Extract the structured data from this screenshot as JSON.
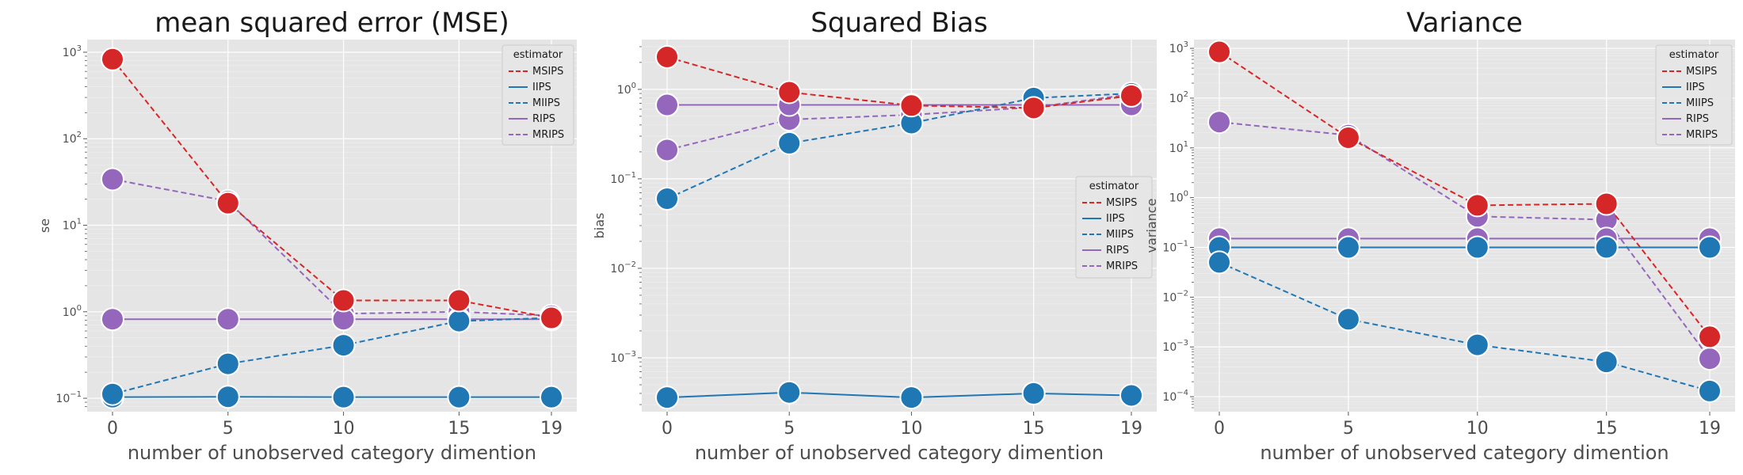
{
  "figure": {
    "legend_title": "estimator",
    "colors": {
      "MSIPS": "#d62728",
      "IIPS": "#1f77b4",
      "MIIPS": "#1f77b4",
      "RIPS": "#9467bd",
      "MRIPS": "#9467bd",
      "panel_bg": "#e5e5e5",
      "grid": "#ffffff"
    }
  },
  "chart_data": [
    {
      "type": "line",
      "title": "mean squared error (MSE)",
      "xlabel": "number of unobserved category dimention",
      "ylabel": "se",
      "yscale": "log",
      "ylim": [
        0.07,
        1400
      ],
      "x": [
        0,
        5,
        10,
        15,
        19
      ],
      "x_ticks": [
        "0",
        "5",
        "10",
        "15",
        "19"
      ],
      "y_ticks": [
        {
          "value": 0.1,
          "base": "10",
          "exp": "−1"
        },
        {
          "value": 1,
          "base": "10",
          "exp": "0"
        },
        {
          "value": 10,
          "base": "10",
          "exp": "1"
        },
        {
          "value": 100,
          "base": "10",
          "exp": "2"
        },
        {
          "value": 1000,
          "base": "10",
          "exp": "3"
        }
      ],
      "grid": true,
      "legend": "top-right",
      "series": [
        {
          "name": "MSIPS",
          "style": "dashed",
          "color": "#d62728",
          "values": [
            830,
            18,
            1.35,
            1.35,
            0.85
          ]
        },
        {
          "name": "IIPS",
          "style": "solid",
          "color": "#1f77b4",
          "values": [
            0.103,
            0.104,
            0.103,
            0.103,
            0.103
          ]
        },
        {
          "name": "MIIPS",
          "style": "dashed",
          "color": "#1f77b4",
          "values": [
            0.112,
            0.25,
            0.41,
            0.78,
            0.85
          ]
        },
        {
          "name": "RIPS",
          "style": "solid",
          "color": "#9467bd",
          "values": [
            0.82,
            0.82,
            0.82,
            0.82,
            0.82
          ]
        },
        {
          "name": "MRIPS",
          "style": "dashed",
          "color": "#9467bd",
          "values": [
            34,
            19,
            0.95,
            1.0,
            0.9
          ]
        }
      ]
    },
    {
      "type": "line",
      "title": "Squared Bias",
      "xlabel": "number of unobserved category dimention",
      "ylabel": "bias",
      "yscale": "log",
      "ylim": [
        0.00025,
        3.6
      ],
      "x": [
        0,
        5,
        10,
        15,
        19
      ],
      "x_ticks": [
        "0",
        "5",
        "10",
        "15",
        "19"
      ],
      "y_ticks": [
        {
          "value": 0.001,
          "base": "10",
          "exp": "−3"
        },
        {
          "value": 0.01,
          "base": "10",
          "exp": "−2"
        },
        {
          "value": 0.1,
          "base": "10",
          "exp": "−1"
        },
        {
          "value": 1,
          "base": "10",
          "exp": "0"
        }
      ],
      "grid": true,
      "legend": "center-right",
      "series": [
        {
          "name": "MSIPS",
          "style": "dashed",
          "color": "#d62728",
          "values": [
            2.3,
            0.93,
            0.66,
            0.62,
            0.85
          ]
        },
        {
          "name": "IIPS",
          "style": "solid",
          "color": "#1f77b4",
          "values": [
            0.00036,
            0.00041,
            0.00036,
            0.0004,
            0.00038
          ]
        },
        {
          "name": "MIIPS",
          "style": "dashed",
          "color": "#1f77b4",
          "values": [
            0.06,
            0.25,
            0.42,
            0.8,
            0.9
          ]
        },
        {
          "name": "RIPS",
          "style": "solid",
          "color": "#9467bd",
          "values": [
            0.67,
            0.67,
            0.67,
            0.67,
            0.67
          ]
        },
        {
          "name": "MRIPS",
          "style": "dashed",
          "color": "#9467bd",
          "values": [
            0.21,
            0.46,
            0.52,
            0.63,
            0.88
          ]
        }
      ]
    },
    {
      "type": "line",
      "title": "Variance",
      "xlabel": "number of unobserved category dimention",
      "ylabel": "variance",
      "yscale": "log",
      "ylim": [
        5e-05,
        1500
      ],
      "x": [
        0,
        5,
        10,
        15,
        19
      ],
      "x_ticks": [
        "0",
        "5",
        "10",
        "15",
        "19"
      ],
      "y_ticks": [
        {
          "value": 0.0001,
          "base": "10",
          "exp": "−4"
        },
        {
          "value": 0.001,
          "base": "10",
          "exp": "−3"
        },
        {
          "value": 0.01,
          "base": "10",
          "exp": "−2"
        },
        {
          "value": 0.1,
          "base": "10",
          "exp": "−1"
        },
        {
          "value": 1,
          "base": "10",
          "exp": "0"
        },
        {
          "value": 10,
          "base": "10",
          "exp": "1"
        },
        {
          "value": 100,
          "base": "10",
          "exp": "2"
        },
        {
          "value": 1000,
          "base": "10",
          "exp": "3"
        }
      ],
      "grid": true,
      "legend": "top-right",
      "series": [
        {
          "name": "MSIPS",
          "style": "dashed",
          "color": "#d62728",
          "values": [
            850,
            16,
            0.7,
            0.75,
            0.0016
          ]
        },
        {
          "name": "IIPS",
          "style": "solid",
          "color": "#1f77b4",
          "values": [
            0.1,
            0.1,
            0.1,
            0.1,
            0.1
          ]
        },
        {
          "name": "MIIPS",
          "style": "dashed",
          "color": "#1f77b4",
          "values": [
            0.05,
            0.0036,
            0.0011,
            0.0005,
            0.00013
          ]
        },
        {
          "name": "RIPS",
          "style": "solid",
          "color": "#9467bd",
          "values": [
            0.15,
            0.15,
            0.15,
            0.15,
            0.15
          ]
        },
        {
          "name": "MRIPS",
          "style": "dashed",
          "color": "#9467bd",
          "values": [
            33,
            18,
            0.42,
            0.36,
            0.00058
          ]
        }
      ]
    }
  ]
}
